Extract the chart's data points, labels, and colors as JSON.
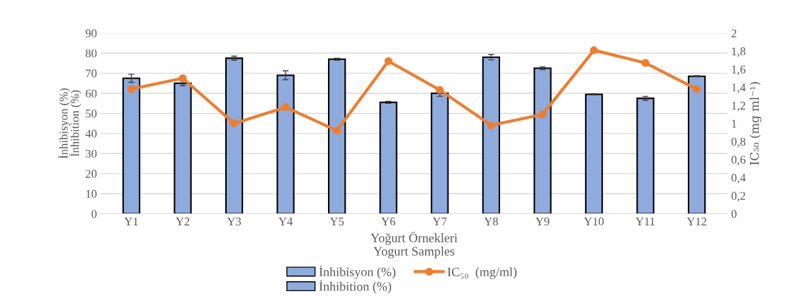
{
  "chart_data": {
    "type": "bar",
    "xlabel": "Yoğurt Örnekleri\nYogurt Samples",
    "ylabel": "İnhibisyon (%)\nİnhibition (%)",
    "y2label": "IC₅₀ (mg ml⁻¹)",
    "categories": [
      "Y1",
      "Y2",
      "Y3",
      "Y4",
      "Y5",
      "Y6",
      "Y7",
      "Y8",
      "Y9",
      "Y10",
      "Y11",
      "Y12"
    ],
    "series": [
      {
        "name": "İnhibisyon (%)\nİnhibition (%)",
        "color": "#8faadc",
        "values": [
          67.5,
          65,
          77.5,
          69,
          77,
          55.5,
          60,
          78,
          72.5,
          59.5,
          57.5,
          68.5
        ],
        "errors": [
          2,
          1.2,
          1,
          2.2,
          0.5,
          0.5,
          1.5,
          1.3,
          0.7,
          0.3,
          1,
          0.3
        ]
      },
      {
        "name": "IC₅₀  (mg/ml)",
        "type": "line",
        "axis": "y2",
        "color": "#ed7d31",
        "marker": "circle",
        "values": [
          1.38,
          1.5,
          1.0,
          1.18,
          0.92,
          1.69,
          1.37,
          0.98,
          1.1,
          1.81,
          1.67,
          1.38
        ]
      }
    ],
    "ylim": [
      0,
      90
    ],
    "yticks": [
      0,
      10,
      20,
      30,
      40,
      50,
      60,
      70,
      80,
      90
    ],
    "y2lim": [
      0,
      2
    ],
    "y2ticks": [
      0,
      {
        "value": 0.2,
        "label": "0,2"
      },
      {
        "value": 0.4,
        "label": "0,4"
      },
      {
        "value": 0.6,
        "label": "0,6"
      },
      {
        "value": 0.8,
        "label": "0,8"
      },
      1,
      {
        "value": 1.2,
        "label": "1,2"
      },
      {
        "value": 1.4,
        "label": "1,4"
      },
      {
        "value": 1.6,
        "label": "1,6"
      },
      {
        "value": 1.8,
        "label": "1,8"
      },
      2
    ],
    "grid": "y",
    "legend": "bottom"
  }
}
